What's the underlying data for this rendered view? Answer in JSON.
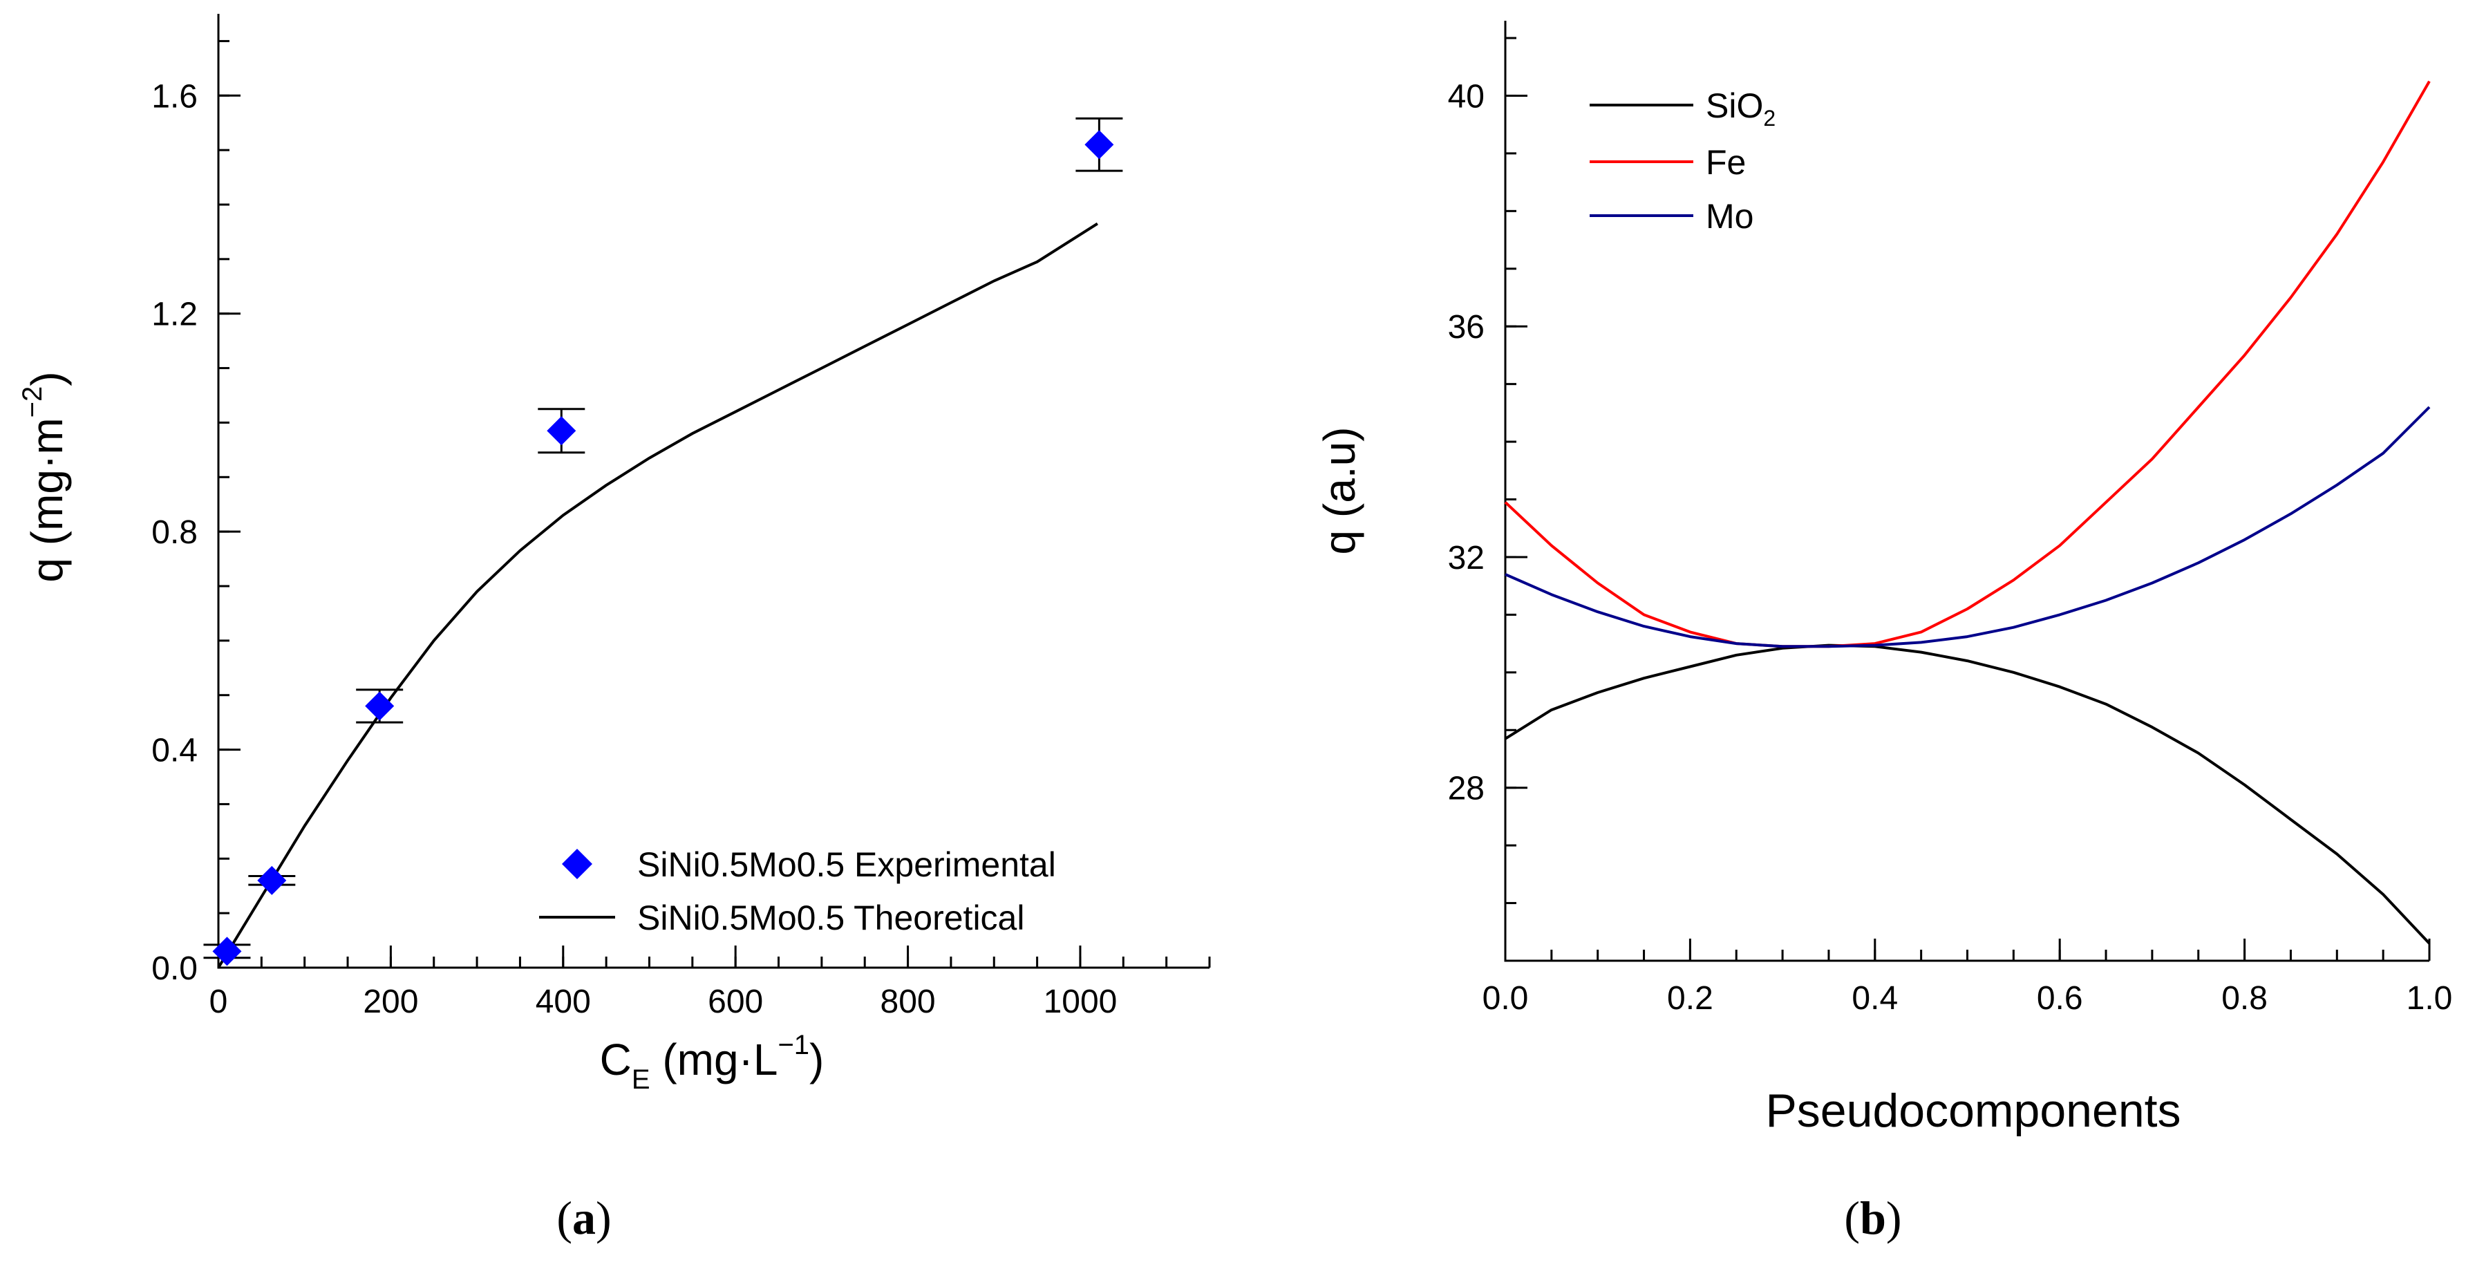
{
  "chart_data": [
    {
      "type": "scatter",
      "panel_label": "a",
      "xlabel_main": "C",
      "xlabel_sub": "E",
      "xlabel_mid": " (mg·L",
      "xlabel_sup": "−1",
      "xlabel_end": ")",
      "ylabel_main": "q (mg·m",
      "ylabel_sup": "−2",
      "ylabel_end": ")",
      "xlim": [
        0,
        1150
      ],
      "ylim": [
        0,
        1.75
      ],
      "xticks": [
        0,
        200,
        400,
        600,
        800,
        1000
      ],
      "xtick_labels": [
        "0",
        "200",
        "400",
        "600",
        "800",
        "1000"
      ],
      "yticks": [
        0,
        0.4,
        0.8,
        1.2,
        1.6
      ],
      "ytick_labels": [
        "0.0",
        "0.4",
        "0.8",
        "1.2",
        "1.6"
      ],
      "x_minor_step": 50,
      "y_minor_step": 0.1,
      "series": [
        {
          "name": "SiNi0.5Mo0.5 Experimental",
          "kind": "points",
          "color": "#0000ff",
          "points": [
            {
              "x": 10,
              "y": 0.03,
              "err": 0.012
            },
            {
              "x": 62,
              "y": 0.16,
              "err": 0.008
            },
            {
              "x": 187,
              "y": 0.48,
              "err": 0.03
            },
            {
              "x": 398,
              "y": 0.985,
              "err": 0.04
            },
            {
              "x": 1022,
              "y": 1.51,
              "err": 0.048
            }
          ]
        },
        {
          "name": "SiNi0.5Mo0.5 Theoretical",
          "kind": "line",
          "color": "#000000",
          "x": [
            0,
            50,
            100,
            150,
            200,
            250,
            300,
            350,
            400,
            450,
            500,
            550,
            600,
            650,
            700,
            750,
            800,
            850,
            900,
            950,
            1020
          ],
          "y": [
            0.0,
            0.13,
            0.26,
            0.38,
            0.495,
            0.6,
            0.69,
            0.765,
            0.83,
            0.885,
            0.935,
            0.98,
            1.02,
            1.06,
            1.1,
            1.14,
            1.18,
            1.22,
            1.26,
            1.295,
            1.365
          ]
        }
      ]
    },
    {
      "type": "line",
      "panel_label": "b",
      "xlabel": "Pseudocomponents",
      "ylabel": "q (a.u)",
      "xlim": [
        0,
        1.0
      ],
      "ylim": [
        25,
        41.3
      ],
      "xticks": [
        0,
        0.2,
        0.4,
        0.6,
        0.8,
        1.0
      ],
      "xtick_labels": [
        "0.0",
        "0.2",
        "0.4",
        "0.6",
        "0.8",
        "1.0"
      ],
      "yticks": [
        28,
        32,
        36,
        40
      ],
      "ytick_labels": [
        "28",
        "32",
        "36",
        "40"
      ],
      "x_minor_step": 0.05,
      "y_minor_step": 1,
      "x": [
        0,
        0.05,
        0.1,
        0.15,
        0.2,
        0.25,
        0.3,
        0.35,
        0.4,
        0.45,
        0.5,
        0.55,
        0.6,
        0.65,
        0.7,
        0.75,
        0.8,
        0.85,
        0.9,
        0.95,
        1.0
      ],
      "series": [
        {
          "name": "SiO",
          "name_sub": "2",
          "color": "#000000",
          "values": [
            28.85,
            29.35,
            29.65,
            29.9,
            30.1,
            30.3,
            30.42,
            30.47,
            30.45,
            30.35,
            30.2,
            30.0,
            29.75,
            29.45,
            29.05,
            28.6,
            28.05,
            27.45,
            26.85,
            26.15,
            25.3
          ]
        },
        {
          "name": "Fe",
          "color": "#ff0000",
          "values": [
            32.95,
            32.2,
            31.55,
            31.0,
            30.7,
            30.5,
            30.45,
            30.45,
            30.5,
            30.7,
            31.1,
            31.6,
            32.2,
            32.95,
            33.7,
            34.6,
            35.5,
            36.5,
            37.6,
            38.85,
            40.25
          ]
        },
        {
          "name": "Mo",
          "color": "#00008b",
          "values": [
            31.7,
            31.35,
            31.05,
            30.8,
            30.62,
            30.5,
            30.45,
            30.45,
            30.47,
            30.52,
            30.62,
            30.78,
            31.0,
            31.25,
            31.55,
            31.9,
            32.3,
            32.75,
            33.25,
            33.8,
            34.6
          ]
        }
      ]
    }
  ],
  "captions": {
    "a": "a",
    "b": "b",
    "open": "(",
    "close": ")"
  }
}
